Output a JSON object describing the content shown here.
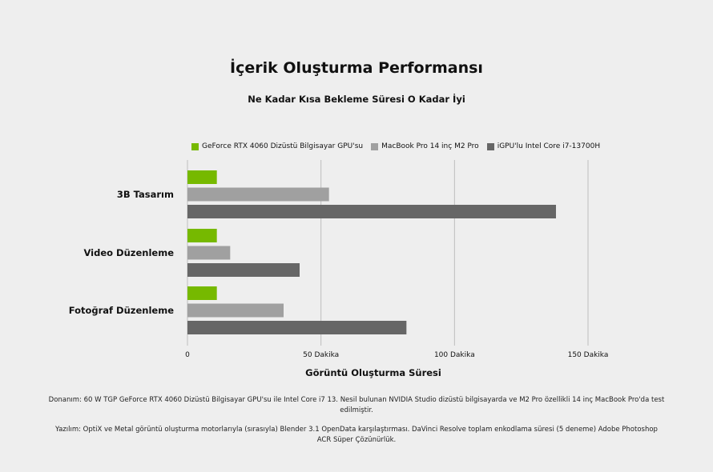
{
  "chart_data": {
    "type": "bar",
    "orientation": "horizontal",
    "title": "İçerik Oluşturma Performansı",
    "subtitle": "Ne Kadar Kısa Bekleme Süresi O Kadar İyi",
    "xlabel": "Görüntü Oluşturma Süresi",
    "ylabel": "",
    "categories": [
      "3B Tasarım",
      "Video Düzenleme",
      "Fotoğraf Düzenleme"
    ],
    "series": [
      {
        "name": "GeForce RTX 4060 Dizüstü Bilgisayar GPU'su",
        "color": "#76b900",
        "values": [
          11,
          11,
          11
        ]
      },
      {
        "name": "MacBook Pro 14 inç M2 Pro",
        "color": "#a0a0a0",
        "values": [
          53,
          16,
          36
        ]
      },
      {
        "name": "iGPU'lu Intel Core i7-13700H",
        "color": "#666666",
        "values": [
          138,
          42,
          82
        ]
      }
    ],
    "xlim": [
      0,
      150
    ],
    "xticks": [
      0,
      50,
      100,
      150
    ],
    "xtick_labels": [
      "0",
      "50 Dakika",
      "100 Dakika",
      "150 Dakika"
    ],
    "grid": true,
    "legend_position": "top"
  },
  "footnotes": {
    "hardware": "Donanım: 60 W TGP GeForce RTX 4060 Dizüstü Bilgisayar GPU'su ile Intel Core i7 13. Nesil bulunan NVIDIA Studio dizüstü bilgisayarda ve M2 Pro özellikli 14 inç MacBook Pro'da test edilmiştir.",
    "software": "Yazılım: OptiX ve Metal görüntü oluşturma motorlarıyla (sırasıyla) Blender 3.1 OpenData karşılaştırması. DaVinci Resolve toplam enkodlama süresi (5 deneme) Adobe Photoshop ACR Süper Çözünürlük."
  }
}
